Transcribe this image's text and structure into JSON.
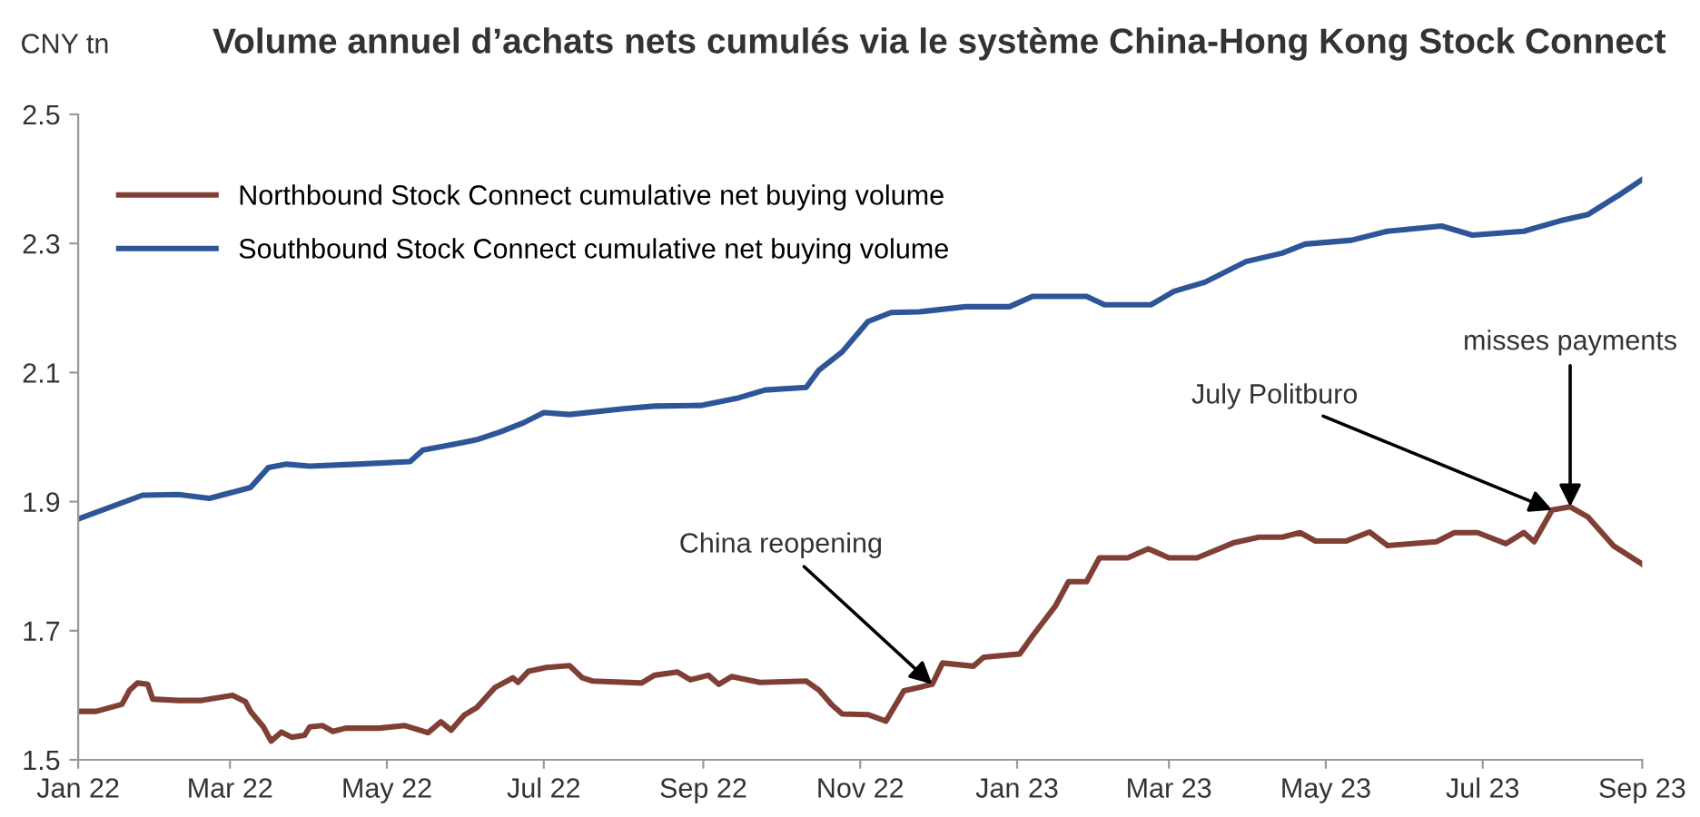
{
  "chart_data": {
    "type": "line",
    "title": "Volume annuel d’achats nets cumulés via le système China-Hong Kong Stock Connect",
    "ylabel": "CNY tn",
    "xlim": [
      "2022-01-01",
      "2023-09-01"
    ],
    "ylim": [
      1.5,
      2.5
    ],
    "yticks": [
      1.5,
      1.7,
      1.9,
      2.1,
      2.3,
      2.5
    ],
    "xticks": [
      {
        "value": "2022-01-01",
        "label": "Jan 22"
      },
      {
        "value": "2022-03-01",
        "label": "Mar 22"
      },
      {
        "value": "2022-05-01",
        "label": "May 22"
      },
      {
        "value": "2022-07-01",
        "label": "Jul 22"
      },
      {
        "value": "2022-09-01",
        "label": "Sep 22"
      },
      {
        "value": "2022-11-01",
        "label": "Nov 22"
      },
      {
        "value": "2023-01-01",
        "label": "Jan 23"
      },
      {
        "value": "2023-03-01",
        "label": "Mar 23"
      },
      {
        "value": "2023-05-01",
        "label": "May 23"
      },
      {
        "value": "2023-07-01",
        "label": "Jul 23"
      },
      {
        "value": "2023-09-01",
        "label": "Sep 23"
      }
    ],
    "grid": false,
    "legend": "top left",
    "marker": "none",
    "line_style": "solid",
    "series": [
      {
        "name": "Northbound Stock Connect cumulative net buying volume",
        "color": "#7f3f35",
        "x": [
          "2022-01-01",
          "2022-01-08",
          "2022-01-18",
          "2022-01-21",
          "2022-01-24",
          "2022-01-28",
          "2022-01-30",
          "2022-02-09",
          "2022-02-18",
          "2022-03-02",
          "2022-03-07",
          "2022-03-09",
          "2022-03-14",
          "2022-03-17",
          "2022-03-21",
          "2022-03-25",
          "2022-03-30",
          "2022-04-01",
          "2022-04-06",
          "2022-04-10",
          "2022-04-15",
          "2022-04-28",
          "2022-05-08",
          "2022-05-17",
          "2022-05-22",
          "2022-05-26",
          "2022-05-31",
          "2022-06-05",
          "2022-06-12",
          "2022-06-19",
          "2022-06-21",
          "2022-06-25",
          "2022-07-02",
          "2022-07-11",
          "2022-07-16",
          "2022-07-20",
          "2022-08-08",
          "2022-08-13",
          "2022-08-22",
          "2022-08-27",
          "2022-09-03",
          "2022-09-07",
          "2022-09-12",
          "2022-09-23",
          "2022-10-11",
          "2022-10-16",
          "2022-10-21",
          "2022-10-25",
          "2022-11-04",
          "2022-11-11",
          "2022-11-18",
          "2022-11-29",
          "2022-12-03",
          "2022-12-15",
          "2022-12-19",
          "2023-01-02",
          "2023-01-07",
          "2023-01-16",
          "2023-01-21",
          "2023-01-28",
          "2023-02-02",
          "2023-02-13",
          "2023-02-21",
          "2023-03-01",
          "2023-03-12",
          "2023-03-26",
          "2023-04-05",
          "2023-04-14",
          "2023-04-21",
          "2023-04-27",
          "2023-05-09",
          "2023-05-18",
          "2023-05-25",
          "2023-06-13",
          "2023-06-20",
          "2023-06-29",
          "2023-07-10",
          "2023-07-17",
          "2023-07-21",
          "2023-07-28",
          "2023-08-04",
          "2023-08-11",
          "2023-08-21",
          "2023-09-01"
        ],
        "values": [
          1.575,
          1.575,
          1.586,
          1.608,
          1.619,
          1.617,
          1.594,
          1.592,
          1.592,
          1.6,
          1.59,
          1.575,
          1.551,
          1.529,
          1.543,
          1.535,
          1.538,
          1.551,
          1.553,
          1.544,
          1.549,
          1.549,
          1.553,
          1.542,
          1.559,
          1.546,
          1.569,
          1.581,
          1.612,
          1.627,
          1.62,
          1.637,
          1.643,
          1.646,
          1.627,
          1.622,
          1.619,
          1.631,
          1.636,
          1.624,
          1.631,
          1.617,
          1.629,
          1.62,
          1.622,
          1.608,
          1.585,
          1.571,
          1.57,
          1.56,
          1.607,
          1.617,
          1.65,
          1.645,
          1.659,
          1.664,
          1.692,
          1.739,
          1.776,
          1.776,
          1.813,
          1.813,
          1.827,
          1.813,
          1.813,
          1.836,
          1.845,
          1.845,
          1.852,
          1.839,
          1.839,
          1.853,
          1.832,
          1.838,
          1.852,
          1.852,
          1.835,
          1.852,
          1.838,
          1.887,
          1.892,
          1.876,
          1.831,
          1.803
        ]
      },
      {
        "name": "Southbound Stock Connect cumulative net buying volume",
        "color": "#2e5597",
        "x": [
          "2022-01-01",
          "2022-01-26",
          "2022-02-09",
          "2022-02-21",
          "2022-03-09",
          "2022-03-16",
          "2022-03-23",
          "2022-04-01",
          "2022-04-19",
          "2022-05-10",
          "2022-05-15",
          "2022-05-26",
          "2022-06-05",
          "2022-06-14",
          "2022-06-23",
          "2022-07-01",
          "2022-07-11",
          "2022-08-01",
          "2022-08-13",
          "2022-08-31",
          "2022-09-14",
          "2022-09-25",
          "2022-10-11",
          "2022-10-16",
          "2022-10-25",
          "2022-11-04",
          "2022-11-13",
          "2022-11-24",
          "2022-12-12",
          "2022-12-29",
          "2023-01-07",
          "2023-01-28",
          "2023-02-04",
          "2023-02-22",
          "2023-03-03",
          "2023-03-15",
          "2023-03-31",
          "2023-04-14",
          "2023-04-23",
          "2023-05-11",
          "2023-05-25",
          "2023-06-15",
          "2023-06-27",
          "2023-07-17",
          "2023-07-31",
          "2023-08-11",
          "2023-08-23",
          "2023-09-01"
        ],
        "values": [
          1.873,
          1.91,
          1.911,
          1.905,
          1.922,
          1.953,
          1.958,
          1.955,
          1.958,
          1.962,
          1.98,
          1.988,
          1.996,
          2.008,
          2.022,
          2.038,
          2.035,
          2.044,
          2.048,
          2.049,
          2.06,
          2.073,
          2.077,
          2.104,
          2.132,
          2.179,
          2.193,
          2.194,
          2.202,
          2.202,
          2.218,
          2.218,
          2.205,
          2.205,
          2.226,
          2.24,
          2.272,
          2.285,
          2.299,
          2.305,
          2.319,
          2.327,
          2.313,
          2.319,
          2.335,
          2.345,
          2.375,
          2.399
        ]
      }
    ],
    "annotations": [
      {
        "text": "China reopening",
        "x": "2022-11-29",
        "y": 1.617
      },
      {
        "text": "July Politburo",
        "x": "2023-07-28",
        "y": 1.887
      },
      {
        "text": "misses payments",
        "x": "2023-08-04",
        "y": 1.892
      }
    ]
  }
}
